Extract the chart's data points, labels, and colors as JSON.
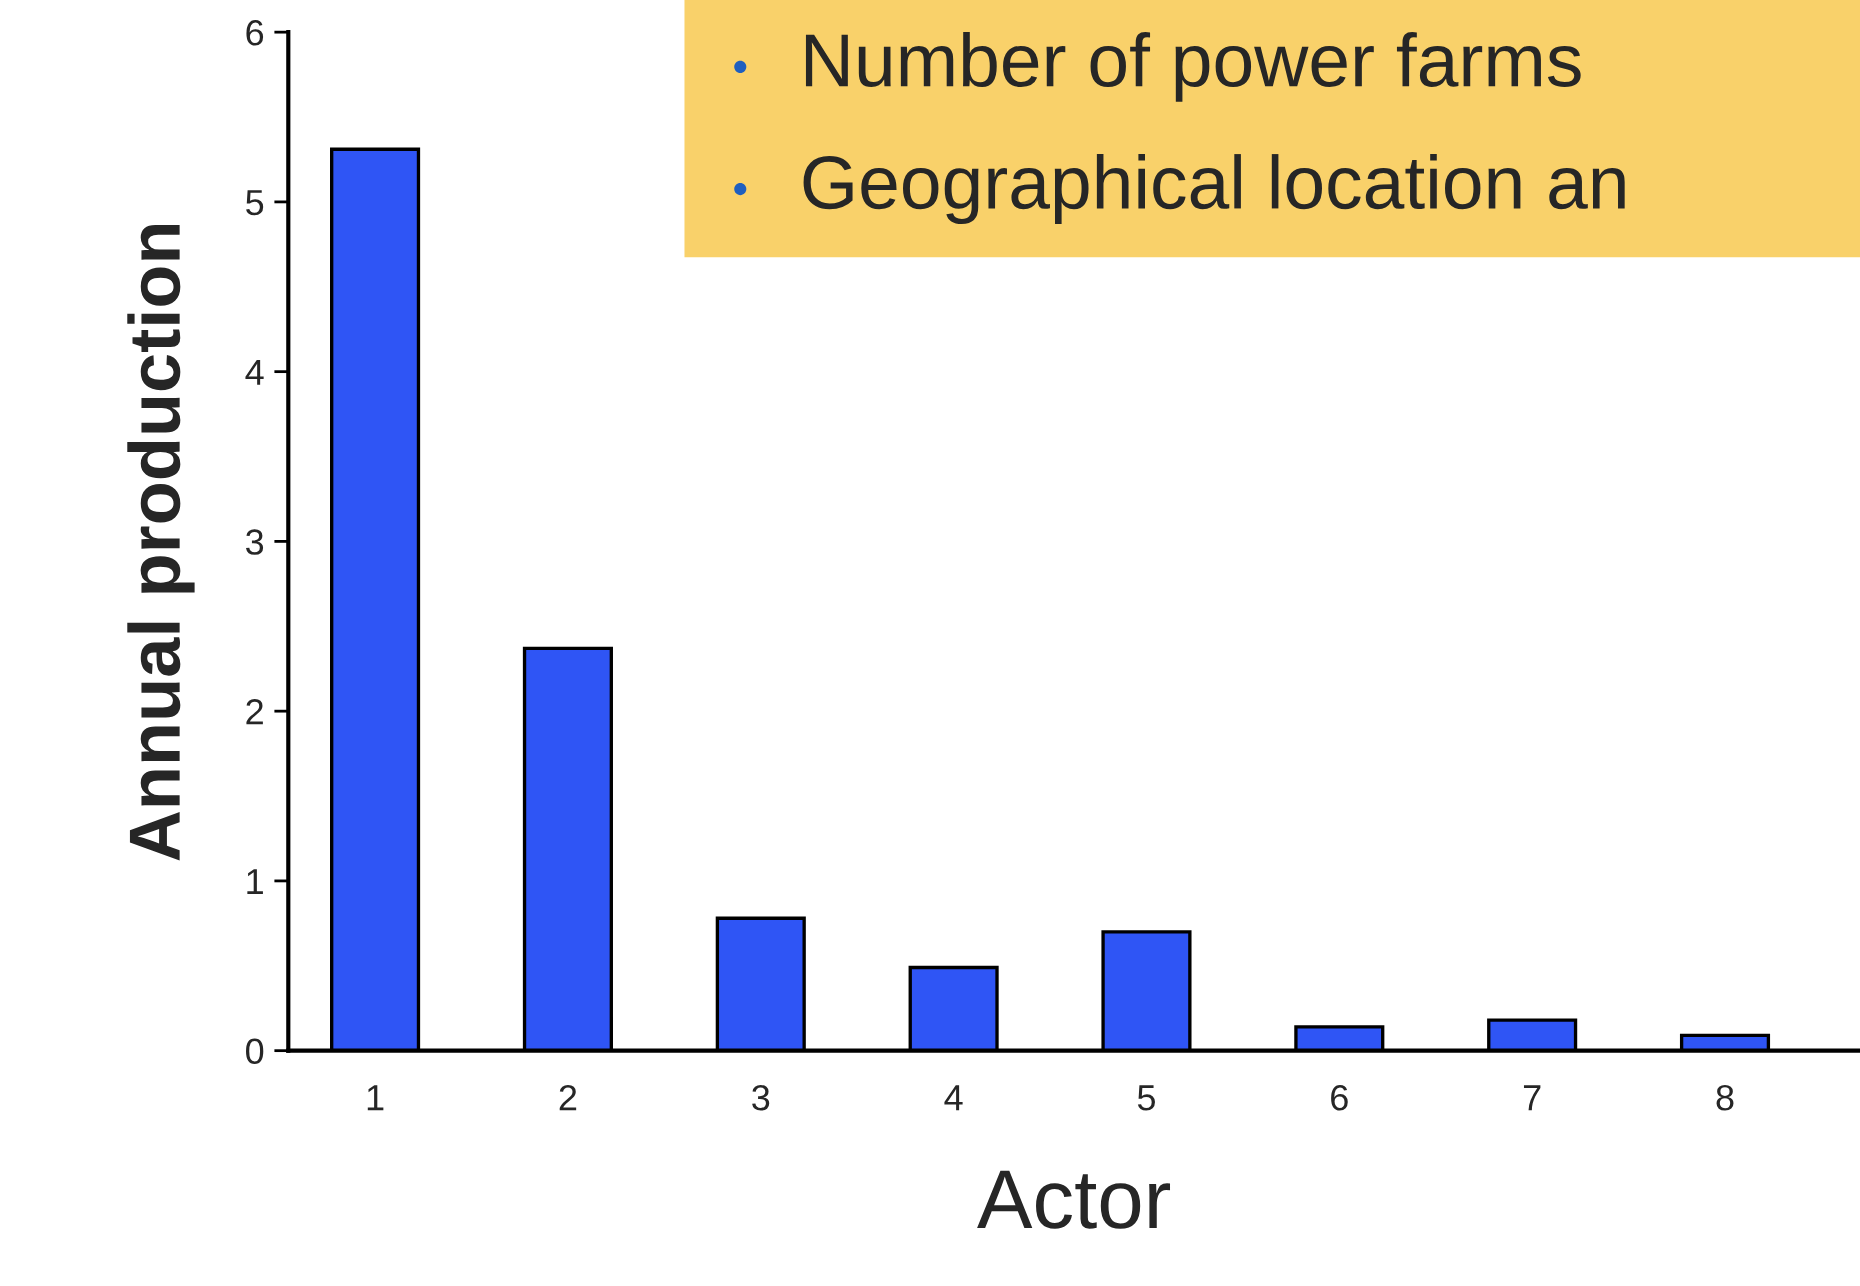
{
  "chart_data": {
    "type": "bar",
    "xlabel": "Actor",
    "ylabel": "Annual production",
    "categories": [
      "1",
      "2",
      "3",
      "4",
      "5",
      "6",
      "7",
      "8"
    ],
    "values": [
      5.31,
      2.37,
      0.78,
      0.49,
      0.7,
      0.14,
      0.18,
      0.09
    ],
    "color": "#2f55f5",
    "ylim": [
      0,
      6
    ],
    "yticks": [
      0,
      1,
      2,
      3,
      4,
      5,
      6
    ],
    "grid": false,
    "annotations": [
      "Number of power farms",
      "Geographical location an"
    ]
  }
}
